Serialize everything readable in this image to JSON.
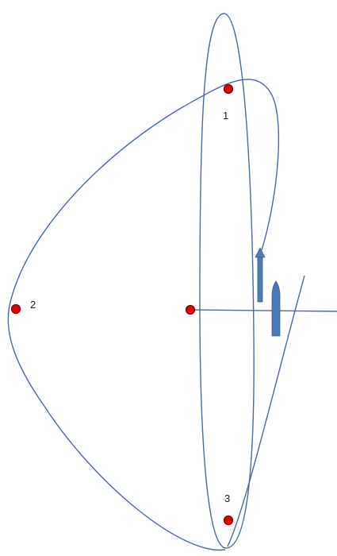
{
  "colors": {
    "curve": "#4a6a9a",
    "point": "#e00000",
    "marker": "#4a7cb7",
    "background": "#ffffff"
  },
  "labels": {
    "point_1": "1",
    "point_2": "2",
    "point_3": "3"
  }
}
